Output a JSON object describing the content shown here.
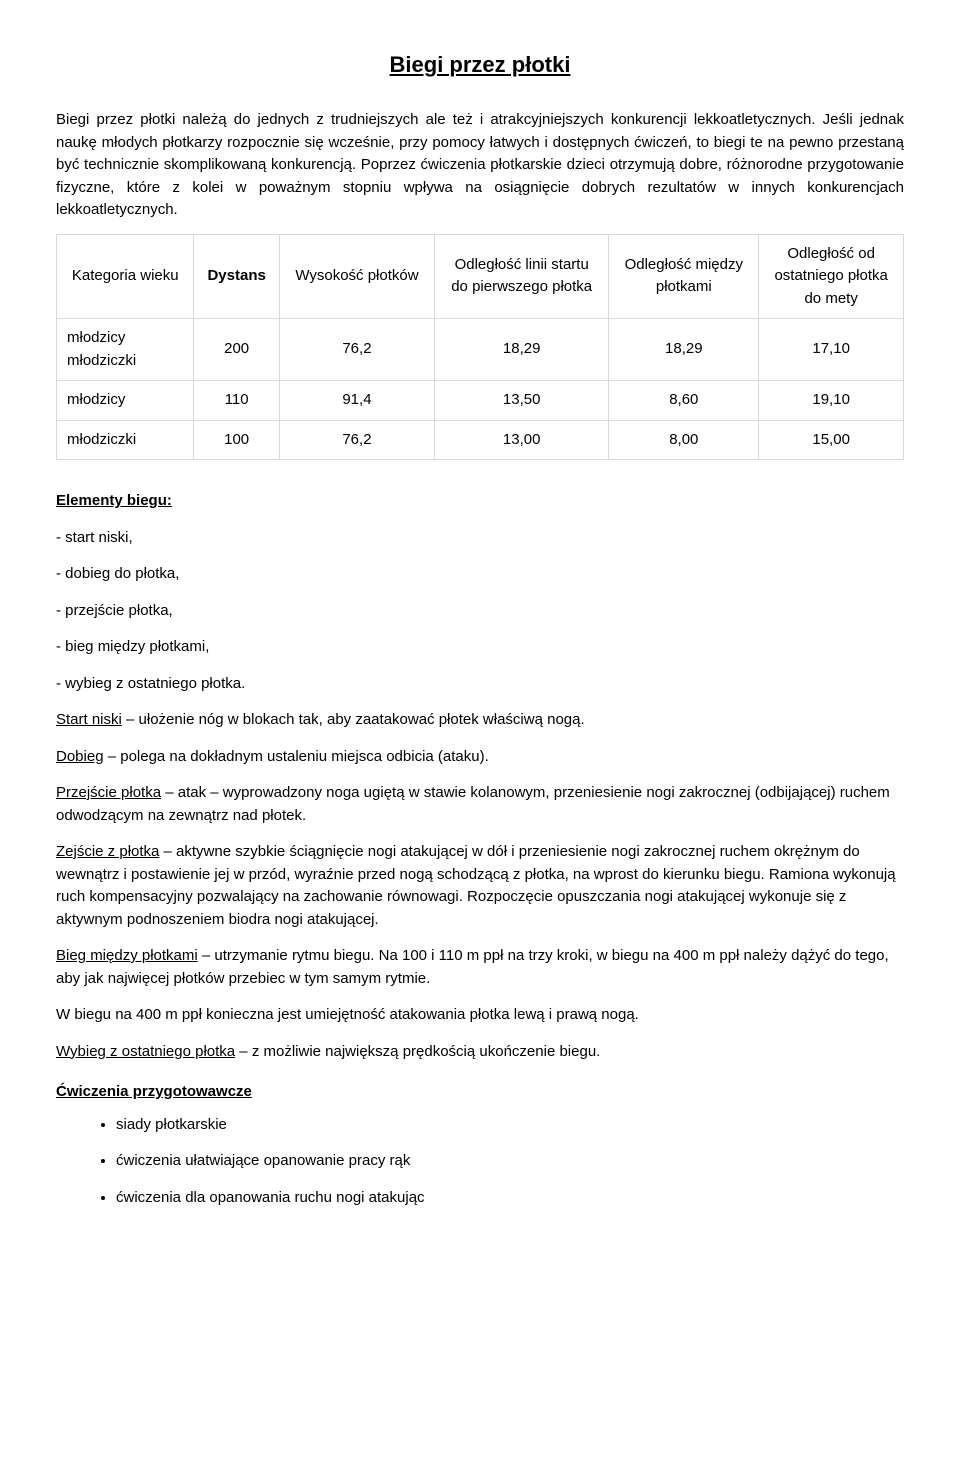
{
  "title": "Biegi przez płotki",
  "intro": "Biegi przez płotki należą do jednych z trudniejszych ale też i atrakcyjniejszych konkurencji lekkoatletycznych. Jeśli jednak naukę młodych płotkarzy rozpocznie się wcześnie, przy pomocy łatwych i dostępnych ćwiczeń, to biegi te na pewno przestaną być technicznie skomplikowaną konkurencją. Poprzez ćwiczenia płotkarskie dzieci otrzymują dobre, różnorodne przygotowanie fizyczne, które z kolei w poważnym stopniu wpływa na osiągnięcie dobrych rezultatów w innych konkurencjach lekkoatletycznych.",
  "table": {
    "headers": {
      "col0": "Kategoria wieku",
      "col1": "Dystans",
      "col2": "Wysokość płotków",
      "col3_l1": "Odległość linii startu",
      "col3_l2": "do pierwszego płotka",
      "col4_l1": "Odległość między",
      "col4_l2": "płotkami",
      "col5_l1": "Odległość od",
      "col5_l2": "ostatniego płotka",
      "col5_l3": "do mety"
    },
    "rows": [
      {
        "cat_l1": "młodzicy",
        "cat_l2": "młodziczki",
        "dist": "200",
        "h": "76,2",
        "d1": "18,29",
        "d2": "18,29",
        "d3": "17,10"
      },
      {
        "cat": "młodzicy",
        "dist": "110",
        "h": "91,4",
        "d1": "13,50",
        "d2": "8,60",
        "d3": "19,10"
      },
      {
        "cat": "młodziczki",
        "dist": "100",
        "h": "76,2",
        "d1": "13,00",
        "d2": "8,00",
        "d3": "15,00"
      }
    ]
  },
  "elements": {
    "heading": "Elementy biegu:",
    "items": [
      "- start niski,",
      "- dobieg do płotka,",
      "- przejście płotka,",
      "- bieg między płotkami,",
      "- wybieg z ostatniego płotka."
    ]
  },
  "defs": {
    "start_niski": {
      "term": "Start niski",
      "text": " – ułożenie nóg w blokach tak, aby zaatakować płotek właściwą nogą."
    },
    "dobieg": {
      "term": "Dobieg",
      "text": " – polega na dokładnym ustaleniu miejsca odbicia (ataku)."
    },
    "przejscie": {
      "term": "Przejście płotka",
      "text": " – atak – wyprowadzony noga ugiętą w stawie kolanowym, przeniesienie nogi zakrocznej (odbijającej) ruchem odwodzącym na zewnątrz nad płotek."
    },
    "zejscie": {
      "term": "Zejście z płotka",
      "text": " – aktywne szybkie ściągnięcie nogi atakującej w dół i przeniesienie nogi zakrocznej ruchem okrężnym do wewnątrz i postawienie jej w przód, wyraźnie przed nogą schodzącą z płotka, na wprost do kierunku biegu. Ramiona wykonują ruch kompensacyjny pozwalający na zachowanie równowagi. Rozpoczęcie opuszczania nogi atakującej wykonuje się z aktywnym podnoszeniem biodra nogi atakującej."
    },
    "bieg_miedzy": {
      "term": "Bieg między płotkami",
      "text": " – utrzymanie rytmu biegu. Na 100 i 110 m ppł na trzy kroki, w biegu na 400 m ppł należy dążyć do tego, aby jak najwięcej płotków przebiec w tym samym rytmie."
    },
    "note400": "W biegu na 400 m ppł konieczna jest umiejętność atakowania płotka lewą i prawą nogą.",
    "wybieg": {
      "term": "Wybieg z ostatniego płotka",
      "text": " – z możliwie największą prędkością ukończenie biegu."
    }
  },
  "exercises": {
    "heading": "Ćwiczenia przygotowawcze",
    "items": [
      "siady płotkarskie",
      "ćwiczenia ułatwiające opanowanie pracy rąk",
      "ćwiczenia dla opanowania ruchu nogi atakując"
    ]
  }
}
